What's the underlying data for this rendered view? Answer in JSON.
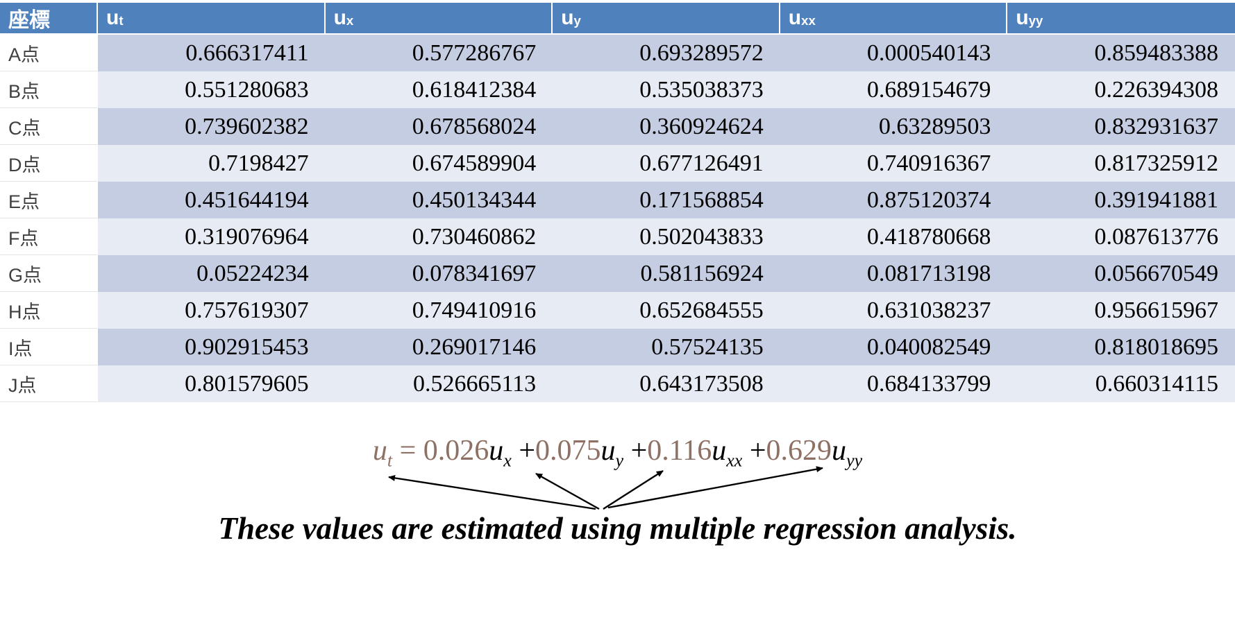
{
  "colors": {
    "header_bg": "#4F81BD",
    "header_text": "#FFFFFF",
    "band_dark": "#C5CDE2",
    "band_light": "#E7EBF4",
    "row_label_text": "#3F3F3F",
    "equation_accent": "#8E7164",
    "arrow": "#000000"
  },
  "table": {
    "header": [
      {
        "base": "座標",
        "sub": ""
      },
      {
        "base": "u",
        "sub": "t"
      },
      {
        "base": "u",
        "sub": "x"
      },
      {
        "base": "u",
        "sub": "y"
      },
      {
        "base": "u",
        "sub": "xx"
      },
      {
        "base": "u",
        "sub": "yy"
      }
    ],
    "rows": [
      {
        "label": "A点",
        "values": [
          "0.666317411",
          "0.577286767",
          "0.693289572",
          "0.000540143",
          "0.859483388"
        ]
      },
      {
        "label": "B点",
        "values": [
          "0.551280683",
          "0.618412384",
          "0.535038373",
          "0.689154679",
          "0.226394308"
        ]
      },
      {
        "label": "C点",
        "values": [
          "0.739602382",
          "0.678568024",
          "0.360924624",
          "0.63289503",
          "0.832931637"
        ]
      },
      {
        "label": "D点",
        "values": [
          "0.7198427",
          "0.674589904",
          "0.677126491",
          "0.740916367",
          "0.817325912"
        ]
      },
      {
        "label": "E点",
        "values": [
          "0.451644194",
          "0.450134344",
          "0.171568854",
          "0.875120374",
          "0.391941881"
        ]
      },
      {
        "label": "F点",
        "values": [
          "0.319076964",
          "0.730460862",
          "0.502043833",
          "0.418780668",
          "0.087613776"
        ]
      },
      {
        "label": "G点",
        "values": [
          "0.05224234",
          "0.078341697",
          "0.581156924",
          "0.081713198",
          "0.056670549"
        ]
      },
      {
        "label": "H点",
        "values": [
          "0.757619307",
          "0.749410916",
          "0.652684555",
          "0.631038237",
          "0.956615967"
        ]
      },
      {
        "label": "I点",
        "values": [
          "0.902915453",
          "0.269017146",
          "0.57524135",
          "0.040082549",
          "0.818018695"
        ]
      },
      {
        "label": "J点",
        "values": [
          "0.801579605",
          "0.526665113",
          "0.643173508",
          "0.684133799",
          "0.660314115"
        ]
      }
    ]
  },
  "equation": {
    "tokens": [
      {
        "text": "u",
        "sub": "t",
        "color": "#8E7164",
        "italic": true
      },
      {
        "text": " = ",
        "color": "#8E7164",
        "italic": false
      },
      {
        "text": "0.026",
        "color": "#8E7164",
        "italic": false
      },
      {
        "text": "u",
        "sub": "x",
        "color": "#000000",
        "italic": true
      },
      {
        "text": " +",
        "color": "#000000",
        "italic": false
      },
      {
        "text": "0.075",
        "color": "#8E7164",
        "italic": false
      },
      {
        "text": "u",
        "sub": "y",
        "color": "#000000",
        "italic": true
      },
      {
        "text": " +",
        "color": "#000000",
        "italic": false
      },
      {
        "text": "0.116",
        "color": "#8E7164",
        "italic": false
      },
      {
        "text": "u",
        "sub": "xx",
        "color": "#000000",
        "italic": true
      },
      {
        "text": " +",
        "color": "#000000",
        "italic": false
      },
      {
        "text": "0.629",
        "color": "#8E7164",
        "italic": false
      },
      {
        "text": "u",
        "sub": "yy",
        "color": "#000000",
        "italic": true
      }
    ]
  },
  "annotation": {
    "text": "These values are estimated using multiple regression analysis."
  },
  "chart_data": {
    "type": "table",
    "columns": [
      "座標",
      "u_t",
      "u_x",
      "u_y",
      "u_xx",
      "u_yy"
    ],
    "rows": [
      [
        "A点",
        0.666317411,
        0.577286767,
        0.693289572,
        0.000540143,
        0.859483388
      ],
      [
        "B点",
        0.551280683,
        0.618412384,
        0.535038373,
        0.689154679,
        0.226394308
      ],
      [
        "C点",
        0.739602382,
        0.678568024,
        0.360924624,
        0.63289503,
        0.832931637
      ],
      [
        "D点",
        0.7198427,
        0.674589904,
        0.677126491,
        0.740916367,
        0.817325912
      ],
      [
        "E点",
        0.451644194,
        0.450134344,
        0.171568854,
        0.875120374,
        0.391941881
      ],
      [
        "F点",
        0.319076964,
        0.730460862,
        0.502043833,
        0.418780668,
        0.087613776
      ],
      [
        "G点",
        0.05224234,
        0.078341697,
        0.581156924,
        0.081713198,
        0.056670549
      ],
      [
        "H点",
        0.757619307,
        0.749410916,
        0.652684555,
        0.631038237,
        0.956615967
      ],
      [
        "I点",
        0.902915453,
        0.269017146,
        0.57524135,
        0.040082549,
        0.818018695
      ],
      [
        "J点",
        0.801579605,
        0.526665113,
        0.643173508,
        0.684133799,
        0.660314115
      ]
    ],
    "equation": "u_t = 0.026u_x + 0.075u_y + 0.116u_xx + 0.629u_yy",
    "coefficients": {
      "u_x": 0.026,
      "u_y": 0.075,
      "u_xx": 0.116,
      "u_yy": 0.629
    },
    "note": "These values are estimated using multiple regression analysis."
  }
}
